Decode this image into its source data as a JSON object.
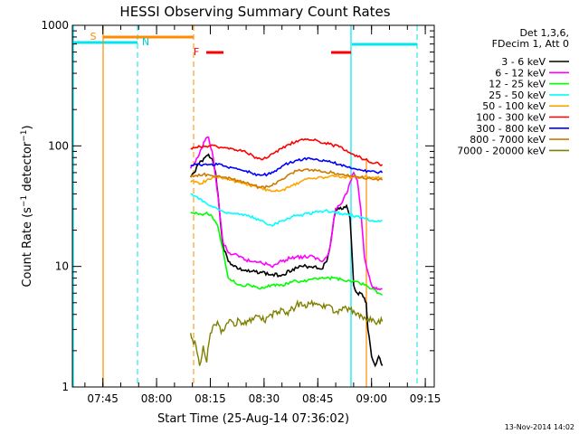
{
  "chart_data": {
    "type": "line",
    "title": "HESSI Observing Summary Count Rates",
    "xlabel": "Start Time (25-Aug-14 07:36:02)",
    "ylabel": "Count Rate (s⁻¹ detector⁻¹)",
    "yscale": "log",
    "ylim": [
      1,
      1000
    ],
    "xlim": [
      456,
      1337
    ],
    "x_unit": "minutes of day",
    "x_ticks": [
      {
        "value": 465,
        "label": "07:45"
      },
      {
        "value": 480,
        "label": "08:00"
      },
      {
        "value": 495,
        "label": "08:15"
      },
      {
        "value": 510,
        "label": "08:30"
      },
      {
        "value": 525,
        "label": "08:45"
      },
      {
        "value": 540,
        "label": "09:00"
      },
      {
        "value": 555,
        "label": "09:15"
      }
    ],
    "y_ticks": [
      {
        "value": 1,
        "label": "1"
      },
      {
        "value": 10,
        "label": "10"
      },
      {
        "value": 100,
        "label": "100"
      },
      {
        "value": 1000,
        "label": "1000"
      }
    ],
    "legend_header": [
      "Det 1,3,6,",
      "FDecim 1, Att 0"
    ],
    "legend_position": "right",
    "series": [
      {
        "name": "3 - 6 keV",
        "color": "#000000",
        "x": [
          489.5,
          490.5,
          491.5,
          492.5,
          493.5,
          494.5,
          495.5,
          496.5,
          497.5,
          498.5,
          500,
          503,
          506,
          509,
          512,
          515,
          518,
          521,
          524,
          526,
          527.5,
          528.5,
          529.5,
          530,
          531,
          532,
          533,
          534,
          535,
          536,
          537,
          538,
          538.5,
          539,
          540,
          541,
          542,
          543
        ],
        "y": [
          55,
          60,
          70,
          75,
          80,
          85,
          78,
          60,
          30,
          15,
          11,
          9.5,
          9,
          9,
          8.5,
          8.5,
          9.5,
          10,
          10,
          9.5,
          11,
          15,
          25,
          30,
          30,
          30,
          32,
          25,
          7,
          6,
          6,
          5.5,
          5,
          3,
          1.8,
          1.5,
          1.8,
          1.5
        ]
      },
      {
        "name": "6 - 12 keV",
        "color": "#ff00ff",
        "x": [
          489.5,
          490.5,
          491.5,
          492.5,
          493.5,
          494.5,
          495.5,
          496.5,
          497.5,
          498.5,
          500,
          503,
          506,
          509,
          512,
          515,
          518,
          521,
          524,
          526,
          527.5,
          528.5,
          529.5,
          530,
          531,
          532,
          533,
          534,
          535,
          536,
          537,
          538,
          539,
          540,
          541,
          542,
          543
        ],
        "y": [
          65,
          70,
          80,
          95,
          110,
          118,
          90,
          55,
          30,
          16,
          13,
          12,
          11,
          11,
          10,
          11,
          12,
          12,
          12,
          11,
          12,
          15,
          25,
          30,
          32,
          35,
          40,
          50,
          60,
          52,
          30,
          12,
          9,
          7,
          6.5,
          6.5,
          6.5
        ]
      },
      {
        "name": "12 - 25 keV",
        "color": "#00ff00",
        "x": [
          489.5,
          491,
          492.5,
          494,
          495.5,
          497,
          498.5,
          500,
          503,
          506,
          509,
          512,
          515,
          518,
          521,
          524,
          527,
          530,
          533,
          536,
          538,
          540,
          542,
          543
        ],
        "y": [
          28,
          28,
          27,
          28,
          26,
          22,
          14,
          8,
          7,
          7,
          6.5,
          7,
          7,
          7.5,
          7.5,
          8,
          8,
          8,
          7.5,
          7.5,
          7,
          6.5,
          6,
          5.8
        ]
      },
      {
        "name": "25 - 50 keV",
        "color": "#00ffff",
        "x": [
          489.5,
          491,
          492.5,
          494,
          496,
          498,
          500,
          503,
          506,
          509,
          512,
          515,
          518,
          521,
          524,
          527,
          530,
          533,
          536,
          538,
          540,
          542,
          543
        ],
        "y": [
          40,
          38,
          36,
          33,
          31,
          29,
          28,
          27,
          26,
          24,
          22,
          24,
          26,
          27,
          28,
          29,
          28,
          27,
          26,
          25,
          24,
          24,
          24
        ]
      },
      {
        "name": "50 - 100 keV",
        "color": "#ffa500",
        "x": [
          489.5,
          490.5,
          492,
          494,
          496,
          498,
          500,
          503,
          506,
          509,
          512,
          515,
          518,
          521,
          524,
          527,
          530,
          533,
          536,
          539,
          543
        ],
        "y": [
          50,
          50,
          48,
          52,
          55,
          55,
          53,
          50,
          47,
          45,
          42,
          43,
          47,
          52,
          54,
          55,
          56,
          55,
          55,
          55,
          54
        ]
      },
      {
        "name": "100 - 300 keV",
        "color": "#ff0000",
        "x": [
          489.5,
          491,
          493,
          495,
          497,
          499,
          501,
          503,
          505,
          507,
          509,
          511,
          513,
          515,
          517,
          519,
          521,
          523,
          525,
          527,
          529,
          531,
          533,
          535,
          537,
          539,
          541,
          543
        ],
        "y": [
          95,
          97,
          100,
          100,
          98,
          97,
          95,
          92,
          88,
          82,
          78,
          80,
          88,
          95,
          103,
          110,
          112,
          112,
          110,
          106,
          102,
          98,
          92,
          85,
          80,
          75,
          72,
          70
        ]
      },
      {
        "name": "300 - 800 keV",
        "color": "#0000ff",
        "x": [
          489.5,
          491,
          493,
          495,
          497,
          499,
          501,
          503,
          505,
          507,
          509,
          511,
          513,
          515,
          517,
          519,
          521,
          523,
          525,
          527,
          529,
          531,
          533,
          535,
          537,
          539,
          541,
          543
        ],
        "y": [
          68,
          70,
          70,
          70,
          70,
          68,
          66,
          64,
          62,
          58,
          57,
          58,
          62,
          68,
          72,
          76,
          78,
          78,
          77,
          75,
          73,
          70,
          67,
          65,
          63,
          62,
          61,
          60
        ]
      },
      {
        "name": "800 - 7000 keV",
        "color": "#cc7a00",
        "x": [
          489.5,
          491,
          493,
          495,
          497,
          499,
          501,
          503,
          505,
          507,
          509,
          511,
          513,
          515,
          517,
          519,
          521,
          523,
          525,
          527,
          529,
          531,
          533,
          535,
          537,
          539,
          541,
          543
        ],
        "y": [
          55,
          57,
          58,
          57,
          56,
          55,
          53,
          51,
          49,
          47,
          45,
          46,
          48,
          53,
          58,
          62,
          63,
          63,
          62,
          61,
          60,
          58,
          57,
          56,
          55,
          54,
          53,
          52
        ]
      },
      {
        "name": "7000 - 20000 keV",
        "color": "#808000",
        "x": [
          489.5,
          490,
          491,
          492,
          493,
          494,
          495,
          496,
          497,
          498,
          499,
          500,
          501,
          502,
          503,
          504,
          505,
          506,
          507,
          508,
          509,
          510,
          511,
          512,
          513,
          514,
          515,
          516,
          517,
          518,
          519,
          520,
          521,
          522,
          523,
          524,
          525,
          526,
          527,
          528,
          529,
          530,
          531,
          532,
          533,
          534,
          535,
          536,
          537,
          538,
          539,
          540,
          541,
          542,
          543
        ],
        "y": [
          2.8,
          2.5,
          2.2,
          1.5,
          2.2,
          1.6,
          2.8,
          3.3,
          3.5,
          2.8,
          3,
          3.4,
          3.5,
          3.2,
          3.6,
          3.4,
          3.3,
          3.7,
          3.6,
          3.9,
          3.7,
          3.5,
          3.8,
          4,
          4.2,
          4.2,
          4.4,
          4,
          4.3,
          4.5,
          4.8,
          5,
          4.7,
          4.6,
          4.9,
          5,
          4.8,
          4.7,
          4.5,
          4.8,
          4.6,
          4.2,
          4.4,
          4.6,
          4.5,
          4.4,
          4.3,
          4.1,
          4,
          3.8,
          3.7,
          3.5,
          3.4,
          3.6,
          3.5
        ]
      }
    ],
    "annotations": [
      {
        "label": "S",
        "color": "#ff8c00",
        "x": 465
      },
      {
        "label": "N",
        "color": "#00cccc",
        "x": 474
      },
      {
        "label": "F",
        "color": "#ff0000",
        "x": 487
      }
    ],
    "footer_date": "13-Nov-2014 14:02"
  }
}
